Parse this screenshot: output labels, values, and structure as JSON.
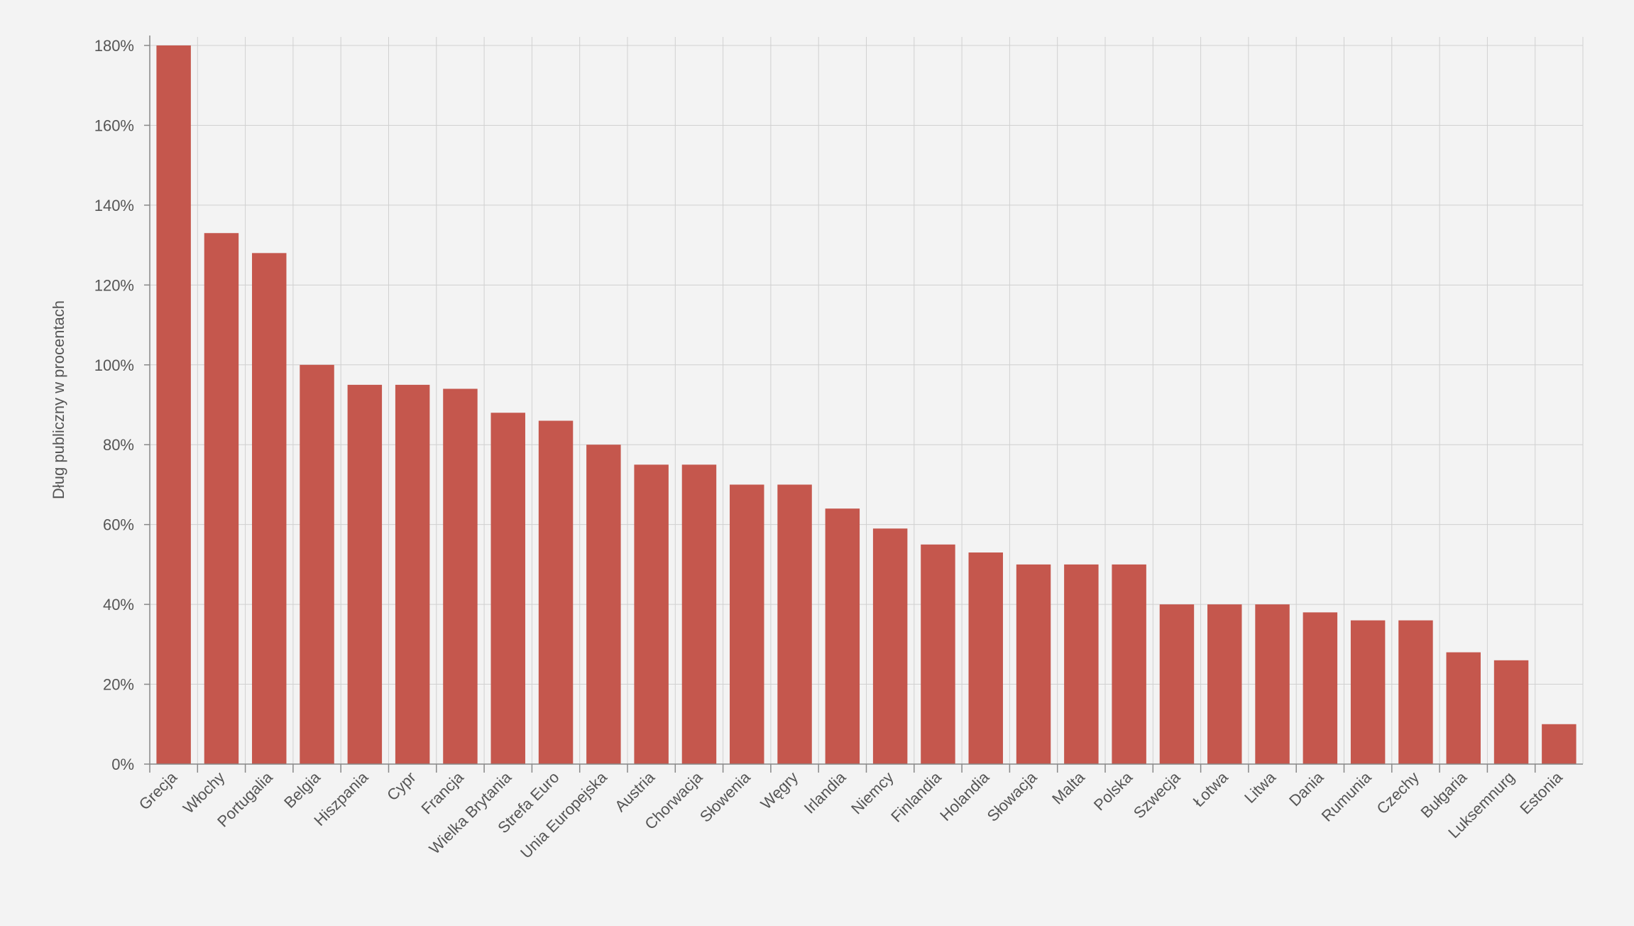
{
  "chart_data": {
    "type": "bar",
    "title": "",
    "xlabel": "",
    "ylabel": "Dług publiczny w procentach",
    "ylim": [
      0,
      180
    ],
    "ytick_values": [
      0,
      20,
      40,
      60,
      80,
      100,
      120,
      140,
      160,
      180
    ],
    "ytick_labels": [
      "0%",
      "20%",
      "40%",
      "60%",
      "80%",
      "100%",
      "120%",
      "140%",
      "160%",
      "180%"
    ],
    "grid": true,
    "bar_color": "#c5574d",
    "categories": [
      "Grecja",
      "Włochy",
      "Portugalia",
      "Belgia",
      "Hiszpania",
      "Cypr",
      "Francja",
      "Wielka Brytania",
      "Strefa Euro",
      "Unia Europejska",
      "Austria",
      "Chorwacja",
      "Słowenia",
      "Węgry",
      "Irlandia",
      "Niemcy",
      "Finlandia",
      "Holandia",
      "Słowacja",
      "Malta",
      "Polska",
      "Szwecja",
      "Łotwa",
      "Litwa",
      "Dania",
      "Rumunia",
      "Czechy",
      "Bułgaria",
      "Luksemnurg",
      "Estonia"
    ],
    "values": [
      180,
      133,
      128,
      100,
      95,
      95,
      94,
      88,
      86,
      80,
      75,
      75,
      70,
      70,
      64,
      59,
      55,
      53,
      50,
      50,
      50,
      40,
      40,
      40,
      38,
      36,
      36,
      28,
      26,
      10
    ]
  }
}
